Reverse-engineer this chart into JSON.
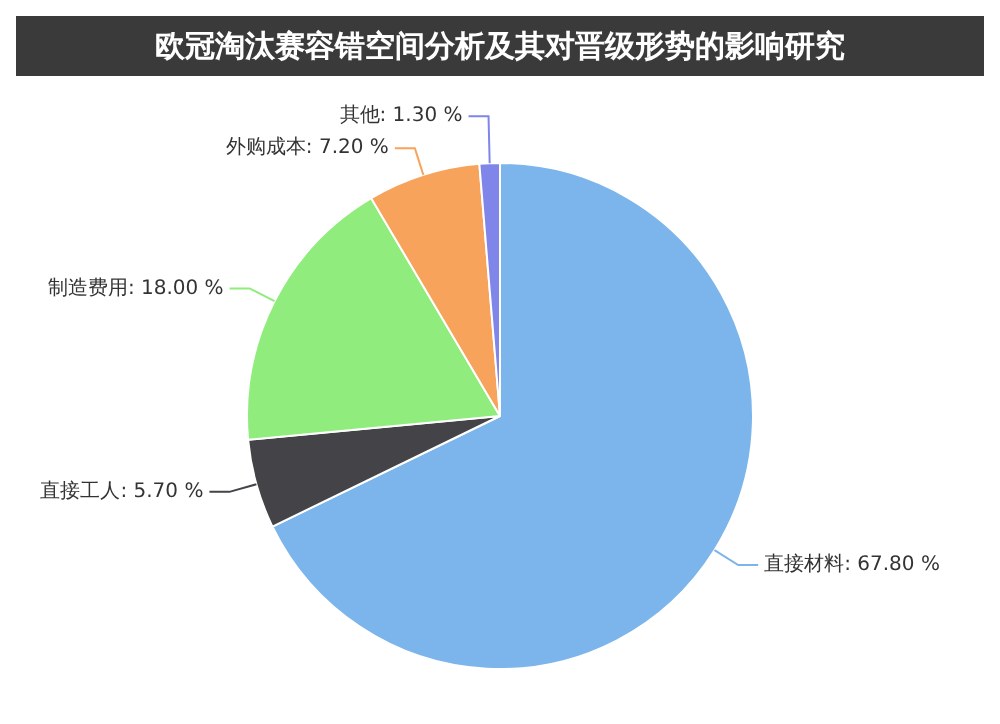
{
  "chart_data": {
    "type": "pie",
    "title": "欧冠淘汰赛容错空间分析及其对晋级形势的影响研究",
    "categories": [
      "直接材料",
      "直接工人",
      "制造费用",
      "外购成本",
      "其他"
    ],
    "values": [
      67.8,
      5.7,
      18,
      7.2,
      1.3
    ],
    "value_labels": [
      "67.80 %",
      "5.70 %",
      "18.00 %",
      "7.20 %",
      "1.30 %"
    ],
    "colors": [
      "#7cb5ec",
      "#434348",
      "#90ed7d",
      "#f7a35c",
      "#8085e9"
    ],
    "legend": false
  }
}
